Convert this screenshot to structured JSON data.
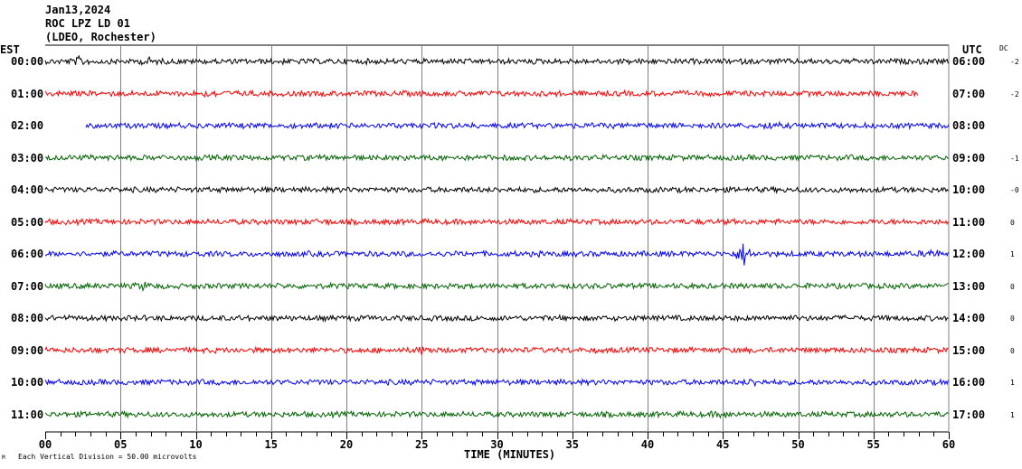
{
  "header": {
    "date": "Jan13,2024",
    "station": "ROC LPZ LD 01",
    "network": "(LDEO, Rochester)"
  },
  "left_tz": "EST",
  "right_tz": "UTC",
  "dc_label": "DC",
  "scale_note": "Each Vertical Division =   50.00 microvolts",
  "corner_mark": "M",
  "colors": {
    "cycle": [
      "#000000",
      "#ff0000",
      "#0000ff",
      "#006400"
    ],
    "grid": "#808080"
  },
  "chart_data": {
    "type": "line",
    "subtype": "helicorder",
    "xlabel": "TIME (MINUTES)",
    "xlim": [
      0,
      60
    ],
    "x_ticks": [
      "00",
      "05",
      "10",
      "15",
      "20",
      "25",
      "30",
      "35",
      "40",
      "45",
      "50",
      "55",
      "60"
    ],
    "grid": "vertical every 5 minutes",
    "rows": [
      {
        "est": "00:00",
        "utc": "06:00",
        "dc": "-2",
        "start": 0,
        "end": 60,
        "events": [
          {
            "minute": 2.3,
            "amp": 1.8
          },
          {
            "minute": 6.8,
            "amp": 1.6
          }
        ]
      },
      {
        "est": "01:00",
        "utc": "07:00",
        "dc": "-2",
        "start": 0,
        "end": 58.0,
        "events": [
          {
            "minute": 11,
            "amp": 1.5
          }
        ]
      },
      {
        "est": "02:00",
        "utc": "08:00",
        "dc": "",
        "start": 2.7,
        "end": 60,
        "events": [
          {
            "minute": 48.1,
            "amp": 1.5
          }
        ]
      },
      {
        "est": "03:00",
        "utc": "09:00",
        "dc": "-1",
        "start": 0,
        "end": 60,
        "events": []
      },
      {
        "est": "04:00",
        "utc": "10:00",
        "dc": "-0",
        "start": 0,
        "end": 60,
        "events": []
      },
      {
        "est": "05:00",
        "utc": "11:00",
        "dc": "0",
        "start": 0,
        "end": 60,
        "events": [
          {
            "minute": 18.5,
            "amp": 1.3
          }
        ]
      },
      {
        "est": "06:00",
        "utc": "12:00",
        "dc": "1",
        "start": 0,
        "end": 60,
        "events": [
          {
            "minute": 46.4,
            "amp": 3.5
          },
          {
            "minute": 58.8,
            "amp": 1.8
          }
        ]
      },
      {
        "est": "07:00",
        "utc": "13:00",
        "dc": "0",
        "start": 0,
        "end": 60,
        "events": [
          {
            "minute": 6.5,
            "amp": 1.6
          }
        ]
      },
      {
        "est": "08:00",
        "utc": "14:00",
        "dc": "0",
        "start": 0,
        "end": 60,
        "events": []
      },
      {
        "est": "09:00",
        "utc": "15:00",
        "dc": "0",
        "start": 0,
        "end": 60,
        "events": [
          {
            "minute": 25.1,
            "amp": 1.7
          }
        ]
      },
      {
        "est": "10:00",
        "utc": "16:00",
        "dc": "1",
        "start": 0,
        "end": 60,
        "events": [
          {
            "minute": 47,
            "amp": 1.6
          }
        ]
      },
      {
        "est": "11:00",
        "utc": "17:00",
        "dc": "1",
        "start": 0,
        "end": 60,
        "events": [
          {
            "minute": 45,
            "amp": 1.5
          }
        ]
      }
    ]
  }
}
